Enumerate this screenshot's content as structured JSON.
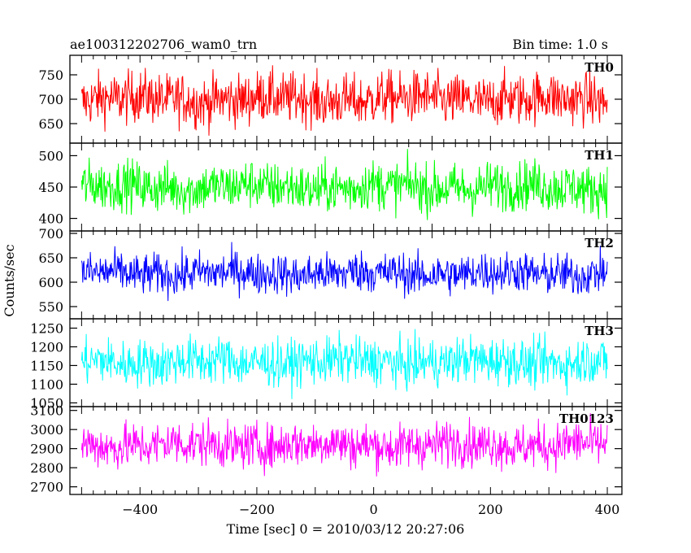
{
  "header": {
    "title": "ae100312202706_wam0_trn",
    "bin_time": "Bin time: 1.0 s"
  },
  "chart_data": {
    "type": "line",
    "xlabel": "Time [sec] 0 = 2010/03/12 20:27:06",
    "ylabel": "Counts/sec",
    "xlim": [
      -520,
      425
    ],
    "x_range": [
      -500,
      400
    ],
    "x_step": 1,
    "x_ticks": [
      -400,
      -200,
      0,
      200,
      400
    ],
    "x_tick_labels": [
      "−400",
      "−200",
      "0",
      "200",
      "400"
    ],
    "grid": false,
    "panels": [
      {
        "name": "TH0",
        "color": "#ff0000",
        "ylim": [
          610,
          790
        ],
        "yticks": [
          650,
          700,
          750
        ],
        "mean": 700,
        "amp": 38
      },
      {
        "name": "TH1",
        "color": "#00ff00",
        "ylim": [
          380,
          520
        ],
        "yticks": [
          400,
          450,
          500
        ],
        "mean": 450,
        "amp": 28
      },
      {
        "name": "TH2",
        "color": "#0000ff",
        "ylim": [
          525,
          705
        ],
        "yticks": [
          550,
          600,
          650,
          700
        ],
        "mean": 618,
        "amp": 30
      },
      {
        "name": "TH3",
        "color": "#00ffff",
        "ylim": [
          1040,
          1275
        ],
        "yticks": [
          1050,
          1100,
          1150,
          1200,
          1250
        ],
        "mean": 1160,
        "amp": 45
      },
      {
        "name": "TH0123",
        "color": "#ff00ff",
        "ylim": [
          2660,
          3120
        ],
        "yticks": [
          2700,
          2800,
          2900,
          3000,
          3100
        ],
        "mean": 2920,
        "amp": 85
      }
    ]
  }
}
